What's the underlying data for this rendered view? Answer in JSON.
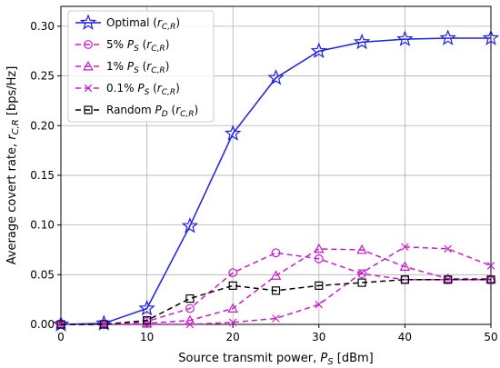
{
  "chart_data": {
    "type": "line",
    "xlabel_main": "Source transmit power, ",
    "xlabel_var": "P",
    "xlabel_sub": "S",
    "xlabel_unit": " [dBm]",
    "ylabel_main": "Average covert rate, ",
    "ylabel_var": "r",
    "ylabel_sub": "C,R",
    "ylabel_unit": " [bps/Hz]",
    "xlim": [
      0,
      50
    ],
    "ylim": [
      0,
      0.32
    ],
    "xticks": [
      0,
      10,
      20,
      30,
      40,
      50
    ],
    "xtick_labels": [
      "0",
      "10",
      "20",
      "30",
      "40",
      "50"
    ],
    "yticks": [
      0,
      0.05,
      0.1,
      0.15,
      0.2,
      0.25,
      0.3
    ],
    "ytick_labels": [
      "0.00",
      "0.05",
      "0.10",
      "0.15",
      "0.20",
      "0.25",
      "0.30"
    ],
    "grid": true,
    "legend_position": "top-left",
    "series": [
      {
        "name": "Optimal (r_{C,R})",
        "legend_main": "Optimal ",
        "legend_var": "",
        "legend_sub": "",
        "legend_tail_var": "r",
        "legend_tail_sub": "C,R",
        "color": "#1f1fe8",
        "dash": "none",
        "marker": "star",
        "x": [
          0,
          5,
          10,
          15,
          20,
          25,
          30,
          35,
          40,
          45,
          50
        ],
        "y": [
          0.0,
          0.001,
          0.016,
          0.099,
          0.192,
          0.248,
          0.275,
          0.284,
          0.287,
          0.288,
          0.288
        ]
      },
      {
        "name": "5% P_S (r_{C,R})",
        "legend_main": "5% ",
        "legend_var": "P",
        "legend_sub": "S",
        "legend_tail_var": "r",
        "legend_tail_sub": "C,R",
        "color": "#c81ec8",
        "dash": "6,4",
        "marker": "circle",
        "x": [
          0,
          5,
          10,
          15,
          20,
          25,
          30,
          35,
          40,
          45,
          50
        ],
        "y": [
          0.0,
          0.0,
          0.003,
          0.016,
          0.052,
          0.072,
          0.066,
          0.051,
          0.045,
          0.045,
          0.045
        ]
      },
      {
        "name": "1% P_S (r_{C,R})",
        "legend_main": "1% ",
        "legend_var": "P",
        "legend_sub": "S",
        "legend_tail_var": "r",
        "legend_tail_sub": "C,R",
        "color": "#c81ec8",
        "dash": "6,4",
        "marker": "triangle",
        "x": [
          0,
          5,
          10,
          15,
          20,
          25,
          30,
          35,
          40,
          45,
          50
        ],
        "y": [
          0.0,
          0.0,
          0.001,
          0.004,
          0.016,
          0.049,
          0.076,
          0.075,
          0.058,
          0.046,
          0.046
        ]
      },
      {
        "name": "0.1% P_S (r_{C,R})",
        "legend_main": "0.1% ",
        "legend_var": "P",
        "legend_sub": "S",
        "legend_tail_var": "r",
        "legend_tail_sub": "C,R",
        "color": "#c81ec8",
        "dash": "6,4",
        "marker": "x",
        "x": [
          0,
          5,
          10,
          15,
          20,
          25,
          30,
          35,
          40,
          45,
          50
        ],
        "y": [
          0.0,
          0.0,
          0.0,
          0.0,
          0.002,
          0.006,
          0.02,
          0.052,
          0.078,
          0.076,
          0.059
        ]
      },
      {
        "name": "Random P_D (r_{C,R})",
        "legend_main": "Random ",
        "legend_var": "P",
        "legend_sub": "D",
        "legend_tail_var": "r",
        "legend_tail_sub": "C,R",
        "color": "#000000",
        "dash": "6,4",
        "marker": "square",
        "x": [
          0,
          5,
          10,
          15,
          20,
          25,
          30,
          35,
          40,
          45,
          50
        ],
        "y": [
          0.0,
          0.0,
          0.004,
          0.026,
          0.039,
          0.034,
          0.039,
          0.042,
          0.045,
          0.045,
          0.045
        ]
      }
    ]
  }
}
